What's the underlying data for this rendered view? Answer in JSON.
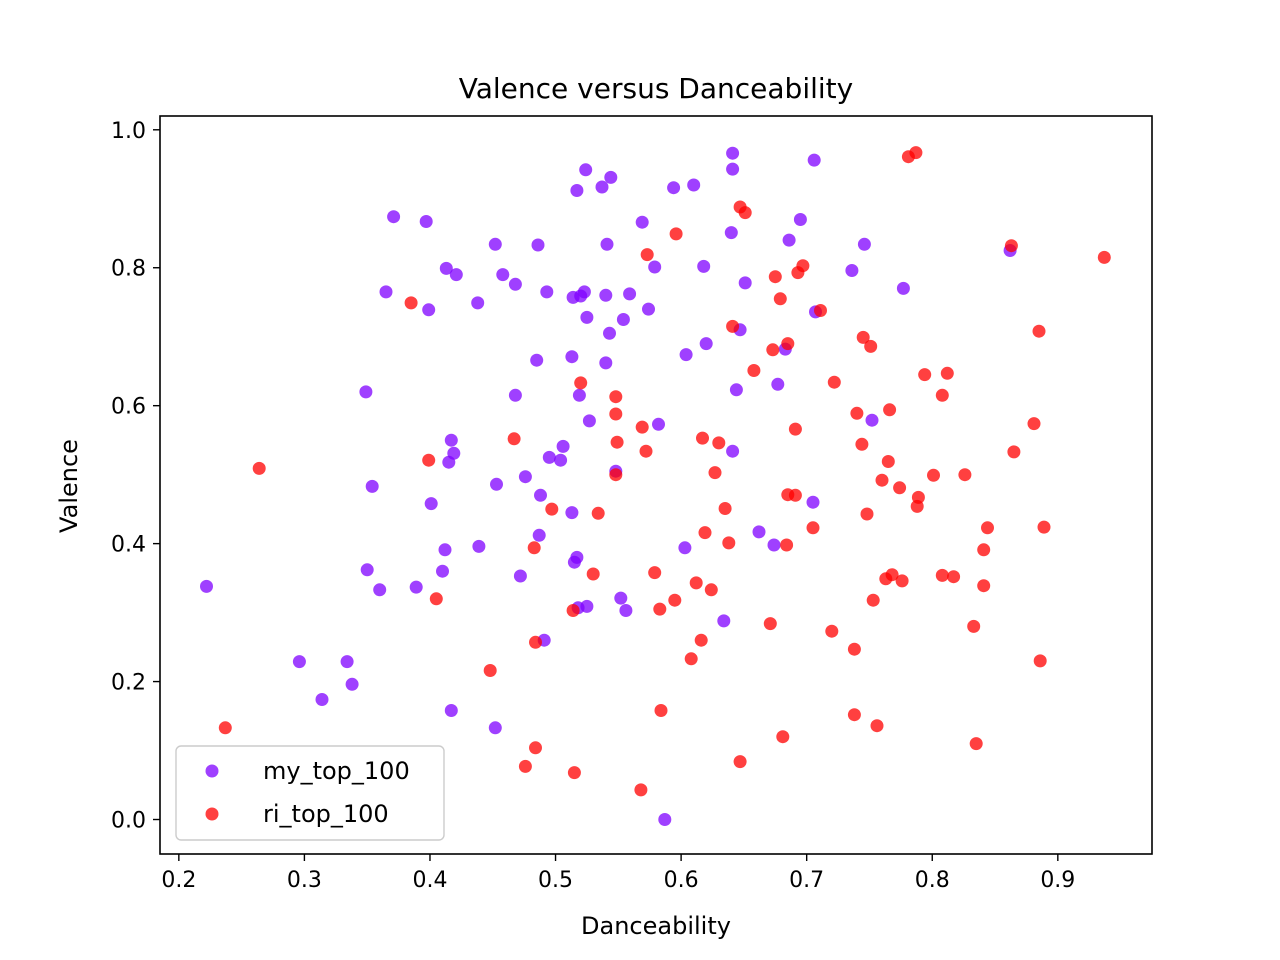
{
  "chart_data": {
    "type": "scatter",
    "title": "Valence versus Danceability",
    "xlabel": "Danceability",
    "ylabel": "Valence",
    "xlim": [
      0.185,
      0.975
    ],
    "ylim": [
      -0.05,
      1.02
    ],
    "xticks": [
      "0.2",
      "0.3",
      "0.4",
      "0.5",
      "0.6",
      "0.7",
      "0.8",
      "0.9"
    ],
    "yticks": [
      "0.0",
      "0.2",
      "0.4",
      "0.6",
      "0.8",
      "1.0"
    ],
    "grid": false,
    "legend_position": "lower-left",
    "series": [
      {
        "name": "my_top_100",
        "color": "#7f00ff",
        "points": [
          [
            0.222,
            0.338
          ],
          [
            0.296,
            0.229
          ],
          [
            0.314,
            0.174
          ],
          [
            0.334,
            0.229
          ],
          [
            0.338,
            0.196
          ],
          [
            0.349,
            0.62
          ],
          [
            0.35,
            0.362
          ],
          [
            0.354,
            0.483
          ],
          [
            0.36,
            0.333
          ],
          [
            0.365,
            0.765
          ],
          [
            0.371,
            0.874
          ],
          [
            0.389,
            0.337
          ],
          [
            0.397,
            0.867
          ],
          [
            0.399,
            0.739
          ],
          [
            0.401,
            0.458
          ],
          [
            0.41,
            0.36
          ],
          [
            0.412,
            0.391
          ],
          [
            0.413,
            0.799
          ],
          [
            0.415,
            0.518
          ],
          [
            0.417,
            0.158
          ],
          [
            0.417,
            0.55
          ],
          [
            0.419,
            0.531
          ],
          [
            0.421,
            0.79
          ],
          [
            0.438,
            0.749
          ],
          [
            0.439,
            0.396
          ],
          [
            0.452,
            0.834
          ],
          [
            0.452,
            0.133
          ],
          [
            0.453,
            0.486
          ],
          [
            0.458,
            0.79
          ],
          [
            0.468,
            0.776
          ],
          [
            0.468,
            0.615
          ],
          [
            0.472,
            0.353
          ],
          [
            0.476,
            0.497
          ],
          [
            0.485,
            0.666
          ],
          [
            0.486,
            0.833
          ],
          [
            0.487,
            0.412
          ],
          [
            0.488,
            0.47
          ],
          [
            0.491,
            0.26
          ],
          [
            0.493,
            0.765
          ],
          [
            0.495,
            0.525
          ],
          [
            0.504,
            0.521
          ],
          [
            0.506,
            0.541
          ],
          [
            0.513,
            0.671
          ],
          [
            0.513,
            0.445
          ],
          [
            0.514,
            0.757
          ],
          [
            0.515,
            0.373
          ],
          [
            0.517,
            0.912
          ],
          [
            0.517,
            0.38
          ],
          [
            0.518,
            0.307
          ],
          [
            0.519,
            0.615
          ],
          [
            0.52,
            0.759
          ],
          [
            0.523,
            0.765
          ],
          [
            0.524,
            0.942
          ],
          [
            0.525,
            0.728
          ],
          [
            0.525,
            0.309
          ],
          [
            0.527,
            0.578
          ],
          [
            0.537,
            0.917
          ],
          [
            0.54,
            0.662
          ],
          [
            0.54,
            0.76
          ],
          [
            0.541,
            0.834
          ],
          [
            0.543,
            0.705
          ],
          [
            0.544,
            0.931
          ],
          [
            0.548,
            0.505
          ],
          [
            0.552,
            0.321
          ],
          [
            0.554,
            0.725
          ],
          [
            0.556,
            0.303
          ],
          [
            0.559,
            0.762
          ],
          [
            0.569,
            0.866
          ],
          [
            0.574,
            0.74
          ],
          [
            0.579,
            0.801
          ],
          [
            0.582,
            0.573
          ],
          [
            0.587,
            0.0
          ],
          [
            0.594,
            0.916
          ],
          [
            0.603,
            0.394
          ],
          [
            0.604,
            0.674
          ],
          [
            0.61,
            0.92
          ],
          [
            0.618,
            0.802
          ],
          [
            0.62,
            0.69
          ],
          [
            0.634,
            0.288
          ],
          [
            0.64,
            0.851
          ],
          [
            0.641,
            0.534
          ],
          [
            0.641,
            0.943
          ],
          [
            0.641,
            0.966
          ],
          [
            0.644,
            0.623
          ],
          [
            0.647,
            0.71
          ],
          [
            0.651,
            0.778
          ],
          [
            0.662,
            0.417
          ],
          [
            0.674,
            0.398
          ],
          [
            0.677,
            0.631
          ],
          [
            0.683,
            0.682
          ],
          [
            0.686,
            0.84
          ],
          [
            0.695,
            0.87
          ],
          [
            0.705,
            0.46
          ],
          [
            0.706,
            0.956
          ],
          [
            0.707,
            0.736
          ],
          [
            0.736,
            0.796
          ],
          [
            0.746,
            0.834
          ],
          [
            0.752,
            0.579
          ],
          [
            0.777,
            0.77
          ],
          [
            0.862,
            0.825
          ]
        ]
      },
      {
        "name": "ri_top_100",
        "color": "#ff0000",
        "points": [
          [
            0.237,
            0.133
          ],
          [
            0.264,
            0.509
          ],
          [
            0.385,
            0.749
          ],
          [
            0.399,
            0.521
          ],
          [
            0.405,
            0.32
          ],
          [
            0.448,
            0.216
          ],
          [
            0.467,
            0.552
          ],
          [
            0.476,
            0.077
          ],
          [
            0.483,
            0.394
          ],
          [
            0.484,
            0.104
          ],
          [
            0.484,
            0.257
          ],
          [
            0.497,
            0.45
          ],
          [
            0.514,
            0.303
          ],
          [
            0.515,
            0.068
          ],
          [
            0.52,
            0.633
          ],
          [
            0.53,
            0.356
          ],
          [
            0.534,
            0.444
          ],
          [
            0.548,
            0.588
          ],
          [
            0.548,
            0.613
          ],
          [
            0.548,
            0.5
          ],
          [
            0.549,
            0.547
          ],
          [
            0.568,
            0.043
          ],
          [
            0.569,
            0.569
          ],
          [
            0.572,
            0.534
          ],
          [
            0.573,
            0.819
          ],
          [
            0.579,
            0.358
          ],
          [
            0.583,
            0.305
          ],
          [
            0.584,
            0.158
          ],
          [
            0.595,
            0.318
          ],
          [
            0.596,
            0.849
          ],
          [
            0.608,
            0.233
          ],
          [
            0.612,
            0.343
          ],
          [
            0.616,
            0.26
          ],
          [
            0.617,
            0.553
          ],
          [
            0.619,
            0.416
          ],
          [
            0.624,
            0.333
          ],
          [
            0.627,
            0.503
          ],
          [
            0.63,
            0.546
          ],
          [
            0.635,
            0.451
          ],
          [
            0.638,
            0.401
          ],
          [
            0.641,
            0.715
          ],
          [
            0.647,
            0.084
          ],
          [
            0.647,
            0.888
          ],
          [
            0.651,
            0.88
          ],
          [
            0.658,
            0.651
          ],
          [
            0.671,
            0.284
          ],
          [
            0.673,
            0.681
          ],
          [
            0.675,
            0.787
          ],
          [
            0.679,
            0.755
          ],
          [
            0.681,
            0.12
          ],
          [
            0.684,
            0.398
          ],
          [
            0.685,
            0.471
          ],
          [
            0.685,
            0.69
          ],
          [
            0.691,
            0.566
          ],
          [
            0.691,
            0.47
          ],
          [
            0.693,
            0.793
          ],
          [
            0.697,
            0.803
          ],
          [
            0.705,
            0.423
          ],
          [
            0.711,
            0.738
          ],
          [
            0.72,
            0.273
          ],
          [
            0.722,
            0.634
          ],
          [
            0.738,
            0.152
          ],
          [
            0.738,
            0.247
          ],
          [
            0.74,
            0.589
          ],
          [
            0.744,
            0.544
          ],
          [
            0.745,
            0.699
          ],
          [
            0.748,
            0.443
          ],
          [
            0.751,
            0.686
          ],
          [
            0.753,
            0.318
          ],
          [
            0.756,
            0.136
          ],
          [
            0.76,
            0.492
          ],
          [
            0.763,
            0.349
          ],
          [
            0.765,
            0.519
          ],
          [
            0.766,
            0.594
          ],
          [
            0.768,
            0.355
          ],
          [
            0.774,
            0.481
          ],
          [
            0.776,
            0.346
          ],
          [
            0.781,
            0.961
          ],
          [
            0.787,
            0.967
          ],
          [
            0.788,
            0.454
          ],
          [
            0.789,
            0.467
          ],
          [
            0.794,
            0.645
          ],
          [
            0.801,
            0.499
          ],
          [
            0.808,
            0.615
          ],
          [
            0.808,
            0.354
          ],
          [
            0.812,
            0.647
          ],
          [
            0.817,
            0.352
          ],
          [
            0.826,
            0.5
          ],
          [
            0.833,
            0.28
          ],
          [
            0.835,
            0.11
          ],
          [
            0.841,
            0.391
          ],
          [
            0.841,
            0.339
          ],
          [
            0.844,
            0.423
          ],
          [
            0.863,
            0.832
          ],
          [
            0.865,
            0.533
          ],
          [
            0.881,
            0.574
          ],
          [
            0.885,
            0.708
          ],
          [
            0.886,
            0.23
          ],
          [
            0.889,
            0.424
          ],
          [
            0.937,
            0.815
          ]
        ]
      }
    ]
  }
}
